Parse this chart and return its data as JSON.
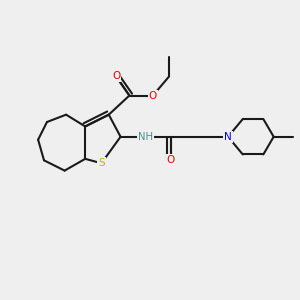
{
  "background_color": "#efefef",
  "bond_color": "#1a1a1a",
  "S_color": "#b8b800",
  "N_color": "#0000ee",
  "O_color": "#ee0000",
  "NH_color": "#4a9090",
  "figsize": [
    3.0,
    3.0
  ],
  "dpi": 100,
  "xlim": [
    0,
    10
  ],
  "ylim": [
    0,
    10
  ]
}
